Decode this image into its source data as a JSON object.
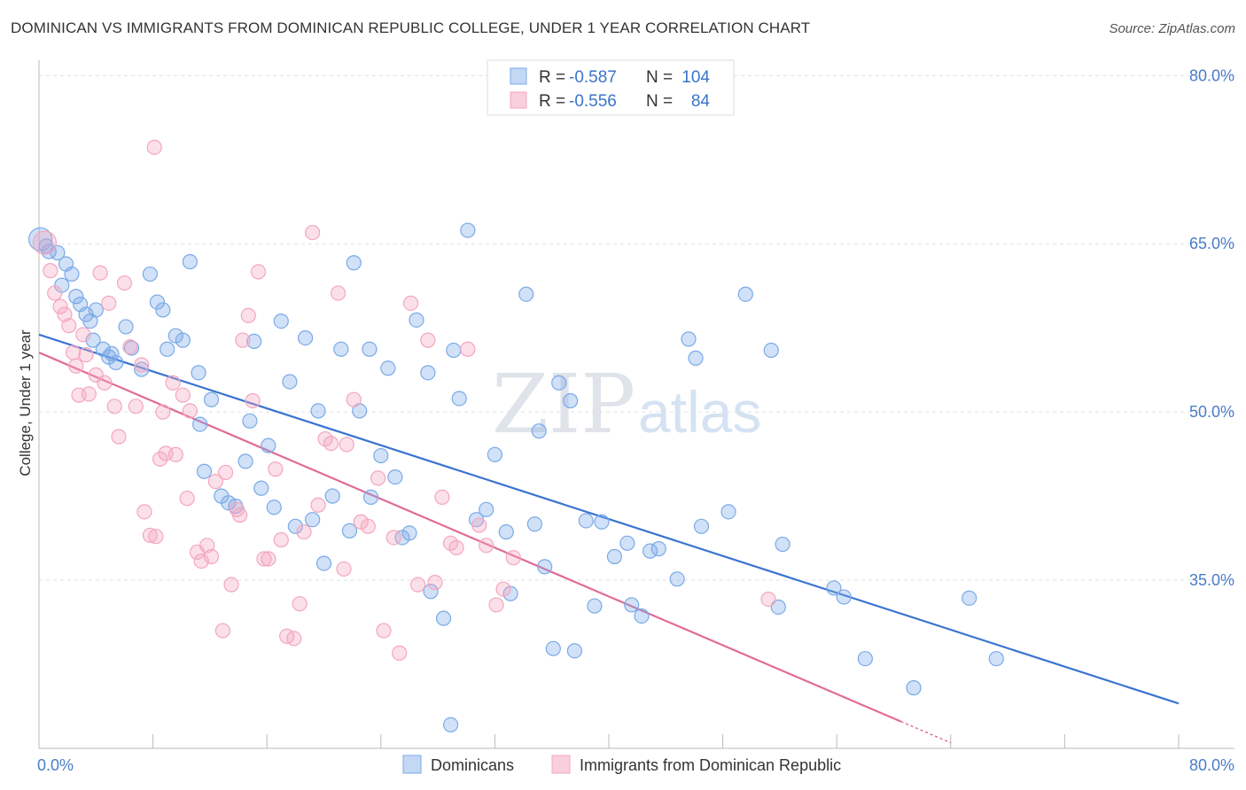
{
  "title": "DOMINICAN VS IMMIGRANTS FROM DOMINICAN REPUBLIC COLLEGE, UNDER 1 YEAR CORRELATION CHART",
  "source": "Source: ZipAtlas.com",
  "watermark": {
    "zip": "ZIP",
    "atlas": "atlas"
  },
  "chart_data": {
    "type": "scatter",
    "xlabel": "",
    "ylabel": "College, Under 1 year",
    "xlim": [
      0,
      80
    ],
    "ylim": [
      20,
      82
    ],
    "x_tick_labels": {
      "min": "0.0%",
      "max": "80.0%"
    },
    "y_ticks": [
      {
        "value": 80,
        "label": "80.0%"
      },
      {
        "value": 65,
        "label": "65.0%"
      },
      {
        "value": 50,
        "label": "50.0%"
      },
      {
        "value": 35,
        "label": "35.0%"
      }
    ],
    "grid": true,
    "legend_top": [
      {
        "series": "Dominicans",
        "r_label": "R =",
        "r": "-0.587",
        "n_label": "N =",
        "n": "104"
      },
      {
        "series": "Immigrants from Dominican Republic",
        "r_label": "R =",
        "r": "-0.556",
        "n_label": "N =",
        "n": "84"
      }
    ],
    "series": [
      {
        "name": "Dominicans",
        "color": "#7aaae8",
        "line_color": "#3a74d0",
        "trend": {
          "x": [
            0,
            80
          ],
          "y": [
            56.9,
            24.0
          ]
        },
        "points": [
          [
            0.1,
            65.4
          ],
          [
            0.5,
            64.8
          ],
          [
            0.7,
            64.3
          ],
          [
            1.3,
            64.2
          ],
          [
            1.6,
            61.3
          ],
          [
            1.9,
            63.2
          ],
          [
            2.3,
            62.3
          ],
          [
            2.6,
            60.3
          ],
          [
            2.9,
            59.6
          ],
          [
            3.3,
            58.7
          ],
          [
            3.6,
            58.1
          ],
          [
            4.0,
            59.1
          ],
          [
            3.8,
            56.4
          ],
          [
            4.5,
            55.6
          ],
          [
            4.9,
            54.9
          ],
          [
            5.4,
            54.4
          ],
          [
            5.1,
            55.2
          ],
          [
            6.1,
            57.6
          ],
          [
            6.5,
            55.7
          ],
          [
            7.2,
            53.8
          ],
          [
            7.8,
            62.3
          ],
          [
            8.3,
            59.8
          ],
          [
            8.7,
            59.1
          ],
          [
            9.0,
            55.6
          ],
          [
            9.6,
            56.8
          ],
          [
            10.1,
            56.4
          ],
          [
            10.6,
            63.4
          ],
          [
            11.2,
            53.5
          ],
          [
            11.6,
            44.7
          ],
          [
            12.1,
            51.1
          ],
          [
            12.8,
            42.5
          ],
          [
            13.3,
            41.9
          ],
          [
            13.8,
            41.6
          ],
          [
            14.5,
            45.6
          ],
          [
            15.1,
            56.3
          ],
          [
            15.6,
            43.2
          ],
          [
            16.1,
            47.0
          ],
          [
            16.5,
            41.5
          ],
          [
            17.0,
            58.1
          ],
          [
            17.6,
            52.7
          ],
          [
            18.0,
            39.8
          ],
          [
            18.7,
            56.6
          ],
          [
            19.2,
            40.4
          ],
          [
            19.6,
            50.1
          ],
          [
            20.0,
            36.5
          ],
          [
            20.6,
            42.5
          ],
          [
            21.2,
            55.6
          ],
          [
            21.8,
            39.4
          ],
          [
            22.1,
            63.3
          ],
          [
            22.5,
            50.1
          ],
          [
            23.3,
            42.4
          ],
          [
            24.0,
            46.1
          ],
          [
            24.5,
            53.9
          ],
          [
            25.0,
            44.2
          ],
          [
            25.5,
            38.8
          ],
          [
            26.0,
            39.2
          ],
          [
            26.5,
            58.2
          ],
          [
            27.3,
            53.5
          ],
          [
            27.5,
            34.0
          ],
          [
            28.4,
            31.6
          ],
          [
            29.1,
            55.5
          ],
          [
            29.5,
            51.2
          ],
          [
            30.1,
            66.2
          ],
          [
            30.7,
            40.4
          ],
          [
            31.4,
            41.3
          ],
          [
            32.0,
            46.2
          ],
          [
            32.8,
            39.3
          ],
          [
            33.1,
            33.8
          ],
          [
            34.2,
            60.5
          ],
          [
            34.8,
            40.0
          ],
          [
            35.1,
            48.3
          ],
          [
            35.5,
            36.2
          ],
          [
            36.1,
            28.9
          ],
          [
            36.5,
            52.6
          ],
          [
            37.3,
            51.0
          ],
          [
            37.6,
            28.7
          ],
          [
            38.4,
            40.3
          ],
          [
            39.0,
            32.7
          ],
          [
            39.5,
            40.2
          ],
          [
            40.4,
            37.1
          ],
          [
            41.3,
            38.3
          ],
          [
            41.6,
            32.8
          ],
          [
            42.3,
            31.8
          ],
          [
            42.9,
            37.6
          ],
          [
            43.5,
            37.8
          ],
          [
            44.8,
            35.1
          ],
          [
            45.6,
            56.5
          ],
          [
            46.1,
            54.8
          ],
          [
            46.5,
            39.8
          ],
          [
            48.4,
            41.1
          ],
          [
            49.6,
            60.5
          ],
          [
            51.4,
            55.5
          ],
          [
            51.9,
            32.6
          ],
          [
            52.2,
            38.2
          ],
          [
            55.8,
            34.3
          ],
          [
            56.5,
            33.5
          ],
          [
            58.0,
            28.0
          ],
          [
            61.4,
            25.4
          ],
          [
            65.3,
            33.4
          ],
          [
            67.2,
            28.0
          ],
          [
            14.8,
            49.2
          ],
          [
            28.9,
            22.1
          ],
          [
            11.3,
            48.9
          ],
          [
            23.2,
            55.6
          ]
        ]
      },
      {
        "name": "Immigrants from Dominican Republic",
        "color": "#f4a6bf",
        "line_color": "#e16b97",
        "trend": {
          "x": [
            0,
            60.5
          ],
          "y": [
            55.3,
            22.4
          ]
        },
        "trend_dashed": {
          "x": [
            60.5,
            64
          ],
          "y": [
            22.4,
            20.5
          ]
        },
        "points": [
          [
            0.4,
            65.1
          ],
          [
            0.8,
            62.6
          ],
          [
            1.1,
            60.6
          ],
          [
            1.5,
            59.4
          ],
          [
            1.8,
            58.7
          ],
          [
            2.1,
            57.7
          ],
          [
            2.4,
            55.3
          ],
          [
            2.6,
            54.1
          ],
          [
            2.8,
            51.5
          ],
          [
            3.1,
            56.9
          ],
          [
            3.3,
            55.1
          ],
          [
            3.5,
            51.6
          ],
          [
            4.0,
            53.3
          ],
          [
            4.3,
            62.4
          ],
          [
            4.6,
            52.6
          ],
          [
            4.9,
            59.7
          ],
          [
            5.3,
            50.5
          ],
          [
            5.6,
            47.8
          ],
          [
            6.0,
            61.5
          ],
          [
            6.4,
            55.8
          ],
          [
            6.8,
            50.5
          ],
          [
            7.2,
            54.2
          ],
          [
            7.4,
            41.1
          ],
          [
            7.8,
            39.0
          ],
          [
            8.1,
            73.6
          ],
          [
            8.5,
            45.8
          ],
          [
            8.7,
            50.0
          ],
          [
            8.9,
            46.3
          ],
          [
            9.4,
            52.6
          ],
          [
            9.6,
            46.2
          ],
          [
            10.1,
            51.5
          ],
          [
            10.4,
            42.3
          ],
          [
            10.6,
            50.1
          ],
          [
            11.1,
            37.5
          ],
          [
            11.4,
            36.7
          ],
          [
            11.8,
            38.1
          ],
          [
            12.1,
            37.1
          ],
          [
            12.4,
            43.8
          ],
          [
            12.9,
            30.5
          ],
          [
            13.1,
            44.6
          ],
          [
            13.5,
            34.6
          ],
          [
            13.9,
            41.3
          ],
          [
            14.3,
            56.4
          ],
          [
            14.7,
            58.6
          ],
          [
            15.0,
            51.0
          ],
          [
            15.4,
            62.5
          ],
          [
            15.8,
            36.9
          ],
          [
            16.1,
            36.9
          ],
          [
            16.6,
            44.9
          ],
          [
            17.0,
            38.6
          ],
          [
            17.4,
            30.0
          ],
          [
            17.9,
            29.8
          ],
          [
            18.3,
            32.9
          ],
          [
            18.6,
            39.3
          ],
          [
            19.2,
            66.0
          ],
          [
            19.6,
            41.7
          ],
          [
            20.1,
            47.6
          ],
          [
            20.5,
            47.2
          ],
          [
            21.0,
            60.6
          ],
          [
            21.4,
            36.0
          ],
          [
            22.1,
            51.1
          ],
          [
            22.6,
            40.2
          ],
          [
            23.1,
            39.8
          ],
          [
            23.8,
            44.1
          ],
          [
            24.2,
            30.5
          ],
          [
            24.9,
            38.8
          ],
          [
            25.3,
            28.5
          ],
          [
            26.1,
            59.7
          ],
          [
            26.6,
            34.6
          ],
          [
            27.3,
            56.4
          ],
          [
            27.8,
            34.8
          ],
          [
            28.3,
            42.4
          ],
          [
            28.9,
            38.3
          ],
          [
            29.3,
            37.9
          ],
          [
            30.1,
            55.6
          ],
          [
            30.9,
            39.9
          ],
          [
            31.4,
            38.1
          ],
          [
            32.1,
            32.8
          ],
          [
            32.6,
            34.2
          ],
          [
            33.3,
            37.0
          ],
          [
            14.1,
            40.8
          ],
          [
            21.6,
            47.1
          ],
          [
            8.2,
            38.9
          ],
          [
            51.2,
            33.3
          ]
        ]
      }
    ]
  }
}
